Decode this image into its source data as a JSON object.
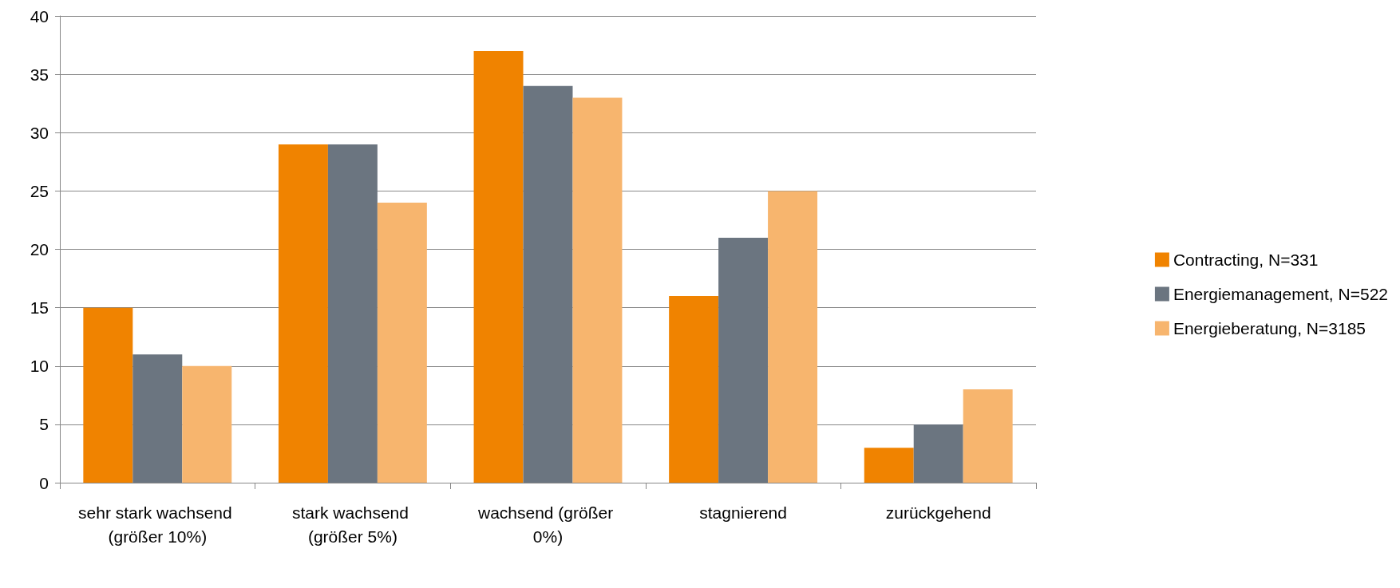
{
  "chart_data": {
    "type": "bar",
    "categories": [
      "sehr stark wachsend (größer 10%)",
      "stark wachsend (größer 5%)",
      "wachsend (größer 0%)",
      "stagnierend",
      "zurückgehend"
    ],
    "series": [
      {
        "name": "Contracting, N=331",
        "color": "#f08300",
        "values": [
          15,
          29,
          37,
          16,
          3
        ]
      },
      {
        "name": "Energiemanagement, N=522",
        "color": "#6b7580",
        "values": [
          11,
          29,
          34,
          21,
          5
        ]
      },
      {
        "name": "Energieberatung, N=3185",
        "color": "#f7b56e",
        "values": [
          10,
          24,
          33,
          25,
          8
        ]
      }
    ],
    "ylim": [
      0,
      40
    ],
    "yticks": [
      0,
      5,
      10,
      15,
      20,
      25,
      30,
      35,
      40
    ],
    "grid": "y",
    "legend": "right"
  }
}
